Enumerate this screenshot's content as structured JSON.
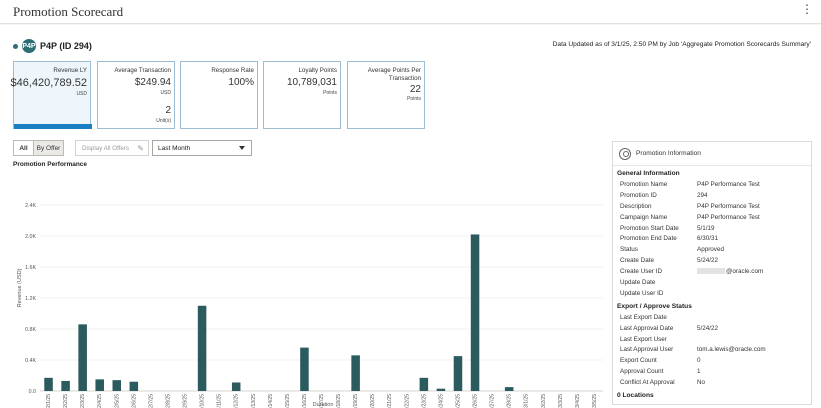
{
  "header": {
    "title": "Promotion Scorecard"
  },
  "promotion": {
    "badge": "P4P",
    "name": "P4P  (ID 294)"
  },
  "updated_text": "Data Updated as of 3/1/25, 2:50 PM by Job 'Aggregate Promotion Scorecards Summary'",
  "cards": [
    {
      "label": "Revenue LY",
      "value": "$46,420,789.52",
      "unit": "USD",
      "selected": true
    },
    {
      "label": "Average Transaction",
      "value": "$249.94",
      "unit": "USD",
      "value2": "2",
      "unit2": "Unit(s)"
    },
    {
      "label": "Response Rate",
      "value": "100%"
    },
    {
      "label": "Loyalty Points",
      "value": "10,789,031",
      "unit": "Points"
    },
    {
      "label": "Average Points Per Transaction",
      "value": "22",
      "unit": "Points"
    }
  ],
  "controls": {
    "all_label": "All",
    "by_offer_label": "By Offer",
    "display_all_offers_label": "Display All Offers",
    "period_value": "Last Month"
  },
  "perf_title": "Promotion Performance",
  "chart_data": {
    "type": "bar",
    "title": "Promotion Performance",
    "xlabel": "Duration",
    "ylabel": "Revenue (USD)",
    "ylim": [
      0,
      2400
    ],
    "yticks": [
      "0.0",
      "0.4K",
      "0.8K",
      "1.2K",
      "1.6K",
      "2.0K",
      "2.4K"
    ],
    "categories": [
      "2/1/25",
      "2/2/25",
      "2/3/25",
      "2/4/25",
      "2/5/25",
      "2/6/25",
      "2/7/25",
      "2/8/25",
      "2/9/25",
      "2/10/25",
      "2/11/25",
      "2/12/25",
      "2/13/25",
      "2/14/25",
      "2/15/25",
      "2/16/25",
      "2/17/25",
      "2/18/25",
      "2/19/25",
      "2/20/25",
      "2/21/25",
      "2/22/25",
      "2/23/25",
      "2/24/25",
      "2/25/25",
      "2/26/25",
      "2/27/25",
      "2/28/25",
      "3/1/25",
      "3/2/25",
      "3/3/25",
      "3/4/25",
      "3/5/25"
    ],
    "values": [
      170,
      130,
      860,
      150,
      140,
      120,
      0,
      0,
      0,
      1100,
      0,
      110,
      0,
      0,
      0,
      560,
      0,
      0,
      460,
      0,
      0,
      0,
      170,
      30,
      450,
      2020,
      0,
      50,
      0,
      0,
      0,
      0,
      0
    ],
    "bar_color": "#2b5b5e"
  },
  "info_panel": {
    "title": "Promotion Information",
    "general_title": "General Information",
    "general": [
      {
        "k": "Promotion Name",
        "v": "P4P Performance Test"
      },
      {
        "k": "Promotion ID",
        "v": "294"
      },
      {
        "k": "Description",
        "v": "P4P Performance Test"
      },
      {
        "k": "Campaign Name",
        "v": "P4P Performance Test"
      },
      {
        "k": "Promotion Start Date",
        "v": "5/1/19"
      },
      {
        "k": "Promotion End Date",
        "v": "6/30/31"
      },
      {
        "k": "Status",
        "v": "Approved"
      },
      {
        "k": "Create Date",
        "v": "5/24/22"
      },
      {
        "k": "Create User ID",
        "v": "@oracle.com"
      },
      {
        "k": "Update Date",
        "v": ""
      },
      {
        "k": "Update User ID",
        "v": ""
      }
    ],
    "export_title": "Export / Approve Status",
    "export": [
      {
        "k": "Last Export Date",
        "v": ""
      },
      {
        "k": "Last Approval Date",
        "v": "5/24/22"
      },
      {
        "k": "Last Export User",
        "v": ""
      },
      {
        "k": "Last Approval User",
        "v": "tom.a.lewis@oracle.com"
      },
      {
        "k": "Export Count",
        "v": "0"
      },
      {
        "k": "Approval Count",
        "v": "1"
      },
      {
        "k": "Conflict At Approval",
        "v": "No"
      }
    ],
    "locations": "0 Locations"
  }
}
